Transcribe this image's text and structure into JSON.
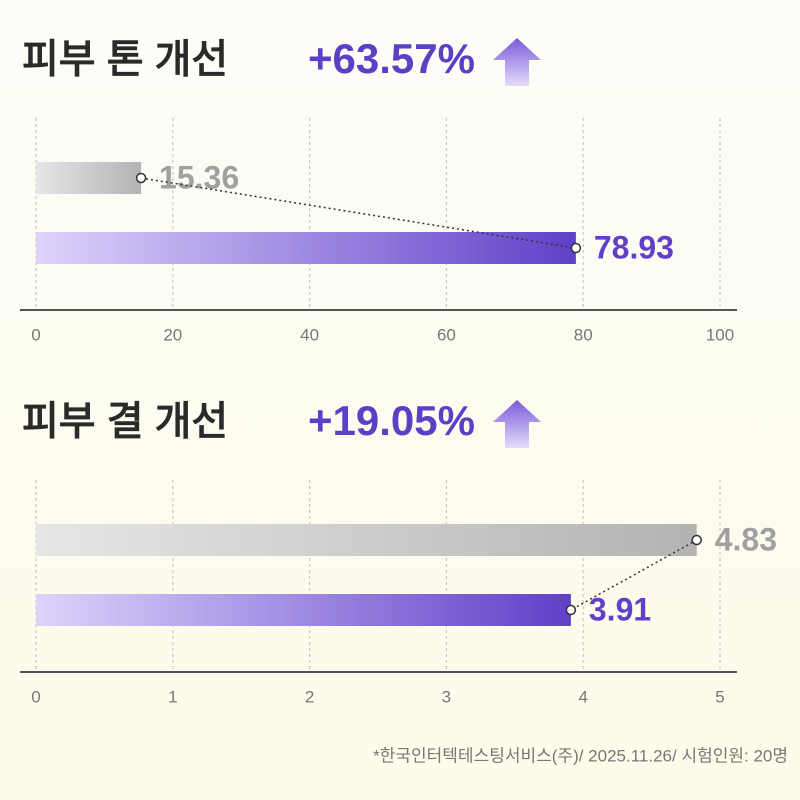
{
  "chart_data": [
    {
      "type": "bar",
      "title": "피부 톤 개선",
      "annotation": "+63.57%",
      "values": [
        15.36,
        78.93
      ],
      "colors": [
        "#b3b3b3",
        "#6040c8"
      ],
      "xlim": [
        0,
        100
      ],
      "xticks": [
        0,
        20,
        40,
        60,
        80,
        100
      ],
      "grid": true
    },
    {
      "type": "bar",
      "title": "피부 결 개선",
      "annotation": "+19.05%",
      "values": [
        4.83,
        3.91
      ],
      "colors": [
        "#b3b3b3",
        "#6040c8"
      ],
      "xlim": [
        0,
        5
      ],
      "xticks": [
        0,
        1,
        2,
        3,
        4,
        5
      ],
      "grid": true
    }
  ],
  "footnote": "*한국인터텍테스팅서비스(주)/ 2025.11.26/ 시험인원: 20명"
}
